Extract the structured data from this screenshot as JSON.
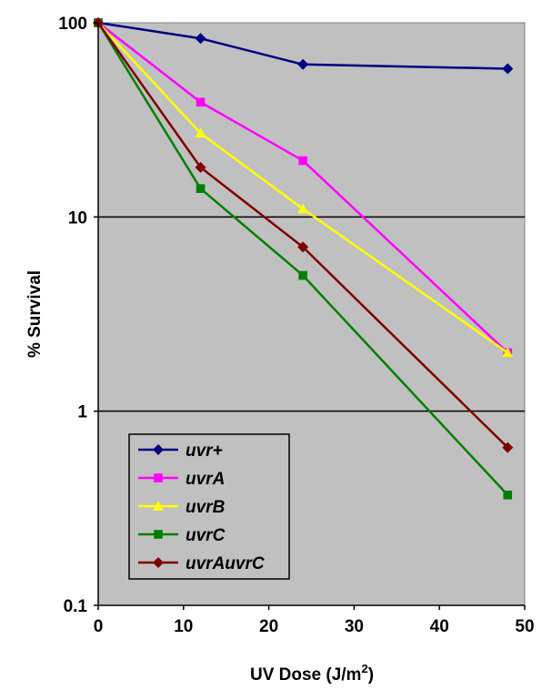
{
  "chart_data": {
    "type": "line",
    "title": "",
    "xlabel": "UV Dose (J/m",
    "xlabel_superscript": "2",
    "xlabel_suffix": ")",
    "ylabel": "% Survival",
    "xlim": [
      0,
      50
    ],
    "ylim": [
      0.1,
      100
    ],
    "yscale": "log",
    "xticks": [
      "0",
      "10",
      "20",
      "30",
      "40",
      "50"
    ],
    "yticks": [
      "0.1",
      "1",
      "10",
      "100"
    ],
    "grid": "horizontal major gridlines",
    "legend_position": "bottom-left",
    "plot_background": "#c0c0c0",
    "x": [
      0,
      12,
      24,
      48
    ],
    "series": [
      {
        "name": "uvr+",
        "color": "#000080",
        "marker": "diamond",
        "values": [
          100,
          83,
          61,
          58
        ]
      },
      {
        "name": "uvrA",
        "color": "#ff00ff",
        "marker": "square",
        "values": [
          100,
          39,
          19.5,
          2
        ]
      },
      {
        "name": "uvrB",
        "color": "#ffff00",
        "marker": "triangle",
        "values": [
          100,
          27,
          11,
          2
        ]
      },
      {
        "name": "uvrC",
        "color": "#008000",
        "marker": "square",
        "values": [
          100,
          14,
          5,
          0.37
        ]
      },
      {
        "name": "uvrAuvrC",
        "color": "#800000",
        "marker": "diamond",
        "values": [
          100,
          18,
          7,
          0.65
        ]
      }
    ]
  }
}
